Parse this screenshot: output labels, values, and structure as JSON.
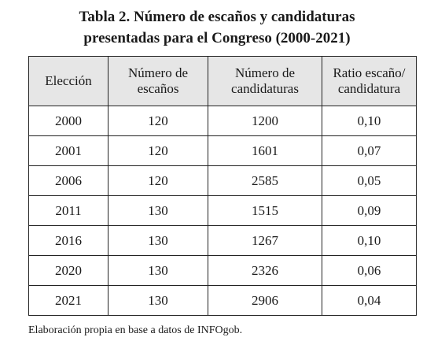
{
  "table": {
    "title_line1": "Tabla 2. Número de escaños y candidaturas",
    "title_line2": "presentadas para el Congreso (2000-2021)",
    "headers": [
      {
        "line1": "Elección",
        "line2": ""
      },
      {
        "line1": "Número de",
        "line2": "escaños"
      },
      {
        "line1": "Número de",
        "line2": "candidaturas"
      },
      {
        "line1": "Ratio escaño/",
        "line2": "candidatura"
      }
    ],
    "rows": [
      [
        "2000",
        "120",
        "1200",
        "0,10"
      ],
      [
        "2001",
        "120",
        "1601",
        "0,07"
      ],
      [
        "2006",
        "120",
        "2585",
        "0,05"
      ],
      [
        "2011",
        "130",
        "1515",
        "0,09"
      ],
      [
        "2016",
        "130",
        "1267",
        "0,10"
      ],
      [
        "2020",
        "130",
        "2326",
        "0,06"
      ],
      [
        "2021",
        "130",
        "2906",
        "0,04"
      ]
    ],
    "source_note": "Elaboración propia en base a datos de INFOgob."
  }
}
